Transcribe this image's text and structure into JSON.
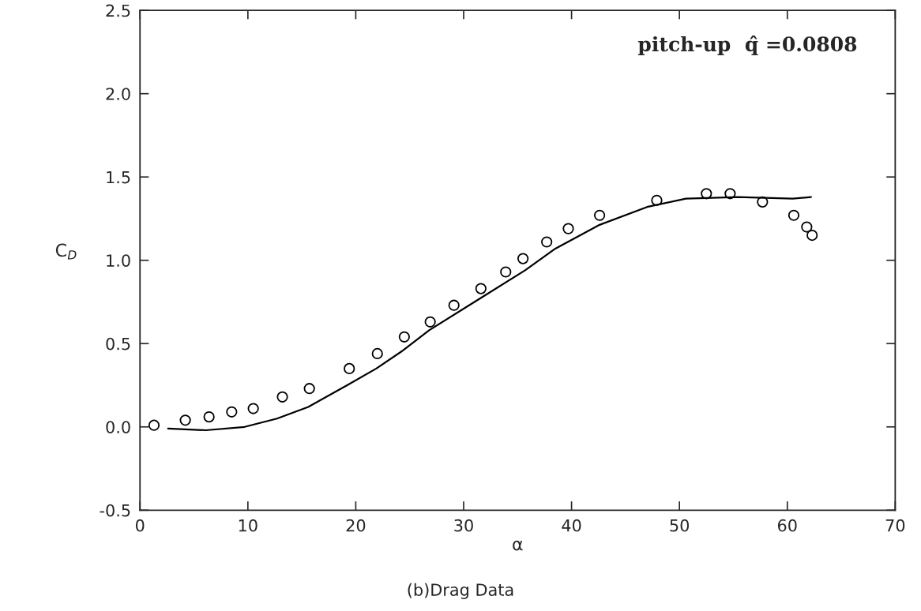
{
  "chart_data": {
    "type": "scatter",
    "title": "pitch-up  q̂ =0.0808",
    "xlabel": "α",
    "ylabel": "C$_{D}$",
    "annotations": [
      "(b)Drag Data"
    ],
    "xlim": [
      0,
      70
    ],
    "xticks": [
      0,
      10,
      20,
      30,
      40,
      50,
      60,
      70
    ],
    "ylim": [
      -0.5,
      2.5
    ],
    "yticks": [
      -0.5,
      {
        "value": 0,
        "label": "0.0"
      },
      0.5,
      {
        "value": 1,
        "label": "1.0"
      },
      1.5,
      {
        "value": 2,
        "label": "2.0"
      },
      2.5
    ],
    "grid": false,
    "legend": false,
    "series": [
      {
        "marker": "circle",
        "color": "#000000",
        "x": [
          1.3,
          4.2,
          6.4,
          8.5,
          10.5,
          13.2,
          15.7,
          19.4,
          22.0,
          24.5,
          26.9,
          29.1,
          31.6,
          33.9,
          35.5,
          37.7,
          39.7,
          42.6,
          47.9,
          52.5,
          54.7,
          57.7,
          60.6,
          61.8,
          62.3
        ],
        "values": [
          0.01,
          0.04,
          0.06,
          0.09,
          0.11,
          0.18,
          0.23,
          0.35,
          0.44,
          0.54,
          0.63,
          0.73,
          0.83,
          0.93,
          1.01,
          1.11,
          1.19,
          1.27,
          1.36,
          1.4,
          1.4,
          1.35,
          1.27,
          1.2,
          1.15
        ]
      },
      {
        "type": "line",
        "marker": "none",
        "line_style": "solid",
        "color": "#000000",
        "x": [
          2.6,
          6.1,
          9.7,
          12.7,
          15.6,
          19.2,
          21.9,
          24.4,
          26.8,
          31.5,
          35.7,
          38.5,
          42.5,
          47.0,
          50.6,
          55.4,
          60.5,
          62.2
        ],
        "values": [
          -0.01,
          -0.02,
          0.0,
          0.05,
          0.12,
          0.25,
          0.35,
          0.46,
          0.58,
          0.77,
          0.94,
          1.07,
          1.21,
          1.32,
          1.37,
          1.38,
          1.37,
          1.38
        ]
      }
    ]
  }
}
